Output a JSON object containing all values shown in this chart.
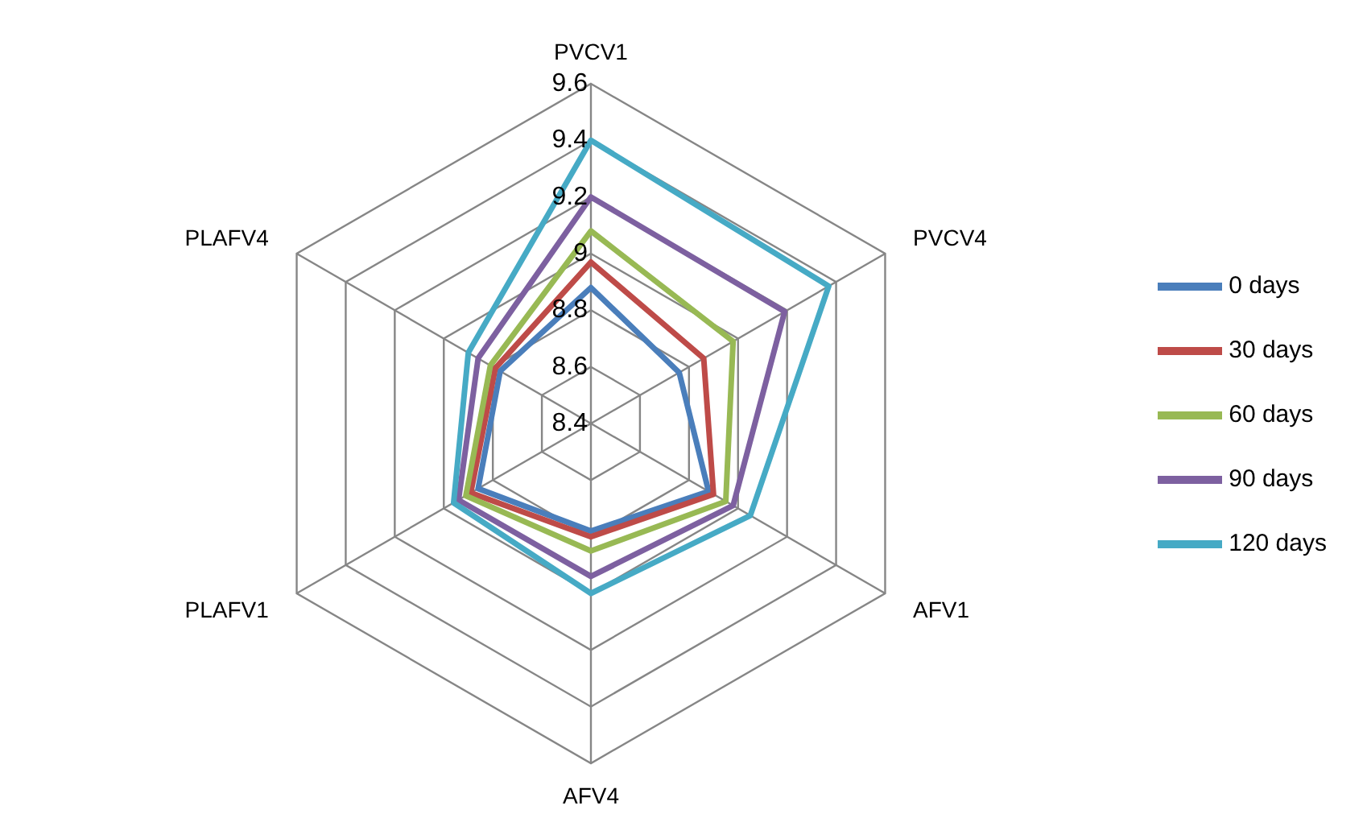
{
  "chart_data": {
    "type": "radar",
    "categories": [
      "PVCV1",
      "PVCV4",
      "AFV1",
      "AFV4",
      "PLAFV1",
      "PLAFV4"
    ],
    "ylim": [
      8.4,
      9.6
    ],
    "yticks": [
      8.4,
      8.6,
      8.8,
      9,
      9.2,
      9.4,
      9.6
    ],
    "legend": "right",
    "marker": "none",
    "series": [
      {
        "name": "0 days",
        "color": "#4a7ebb",
        "values": [
          8.88,
          8.76,
          8.88,
          8.78,
          8.86,
          8.77
        ]
      },
      {
        "name": "30 days",
        "color": "#be4b48",
        "values": [
          8.97,
          8.86,
          8.9,
          8.8,
          8.89,
          8.79
        ]
      },
      {
        "name": "60 days",
        "color": "#98b954",
        "values": [
          9.08,
          8.98,
          8.95,
          8.85,
          8.91,
          8.81
        ]
      },
      {
        "name": "90 days",
        "color": "#7d60a0",
        "values": [
          9.2,
          9.19,
          8.98,
          8.94,
          8.94,
          8.86
        ]
      },
      {
        "name": "120 days",
        "color": "#46aac5",
        "values": [
          9.4,
          9.37,
          9.05,
          9,
          8.96,
          8.9
        ]
      }
    ]
  }
}
